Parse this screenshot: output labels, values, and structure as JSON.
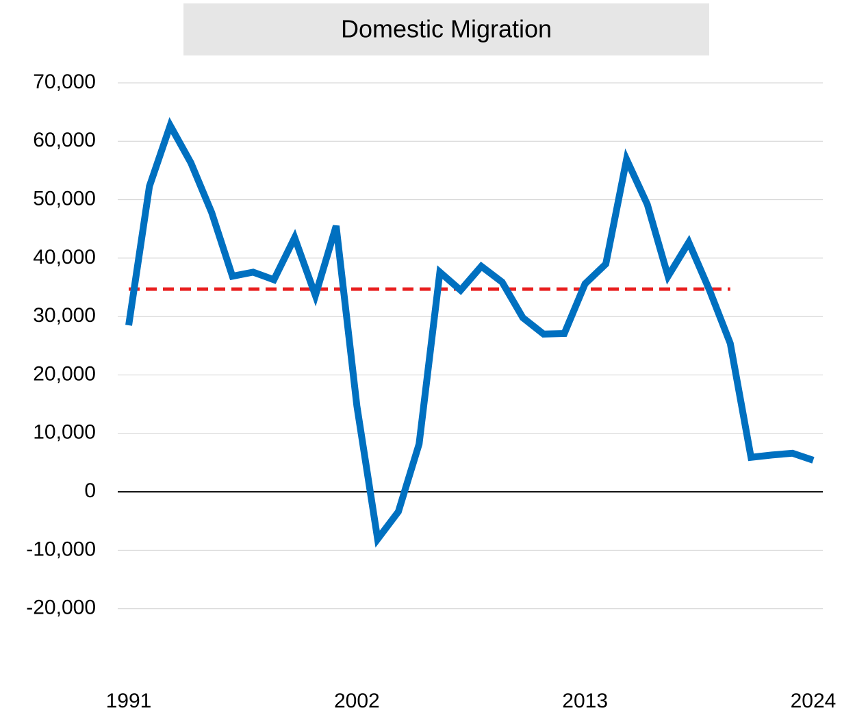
{
  "chart_data": {
    "type": "line",
    "title": "Domestic Migration",
    "x": [
      1991,
      1992,
      1993,
      1994,
      1995,
      1996,
      1997,
      1998,
      1999,
      2000,
      2001,
      2002,
      2003,
      2004,
      2005,
      2006,
      2007,
      2008,
      2009,
      2010,
      2011,
      2012,
      2013,
      2014,
      2015,
      2016,
      2017,
      2018,
      2019,
      2020,
      2021,
      2022,
      2023,
      2024
    ],
    "series": [
      {
        "color": "#0070c0",
        "values": [
          28500,
          52300,
          62700,
          56300,
          47800,
          36900,
          37600,
          36300,
          43500,
          33600,
          45500,
          14700,
          -8100,
          -3400,
          8200,
          37600,
          34500,
          38600,
          35900,
          29800,
          27000,
          27100,
          35600,
          39000,
          56900,
          49200,
          36900,
          42700,
          34500,
          25400,
          5900,
          6300,
          6600,
          5400
        ]
      }
    ],
    "reference_line": {
      "y": 34700,
      "x": [
        1991,
        2020
      ],
      "color": "#e81e1e",
      "dashed": true
    },
    "xlim": [
      1991,
      2024
    ],
    "xticks": [
      1991,
      2002,
      2013,
      2024
    ],
    "ylim": [
      -30000,
      70000
    ],
    "yticks": [
      {
        "value": -20000,
        "label": "-20,000"
      },
      {
        "value": -10000,
        "label": "-10,000"
      },
      0,
      {
        "value": 10000,
        "label": "10,000"
      },
      {
        "value": 20000,
        "label": "20,000"
      },
      {
        "value": 30000,
        "label": "30,000"
      },
      {
        "value": 40000,
        "label": "40,000"
      },
      {
        "value": 50000,
        "label": "50,000"
      },
      {
        "value": 60000,
        "label": "60,000"
      },
      {
        "value": 70000,
        "label": "70,000"
      }
    ],
    "grid": true
  }
}
